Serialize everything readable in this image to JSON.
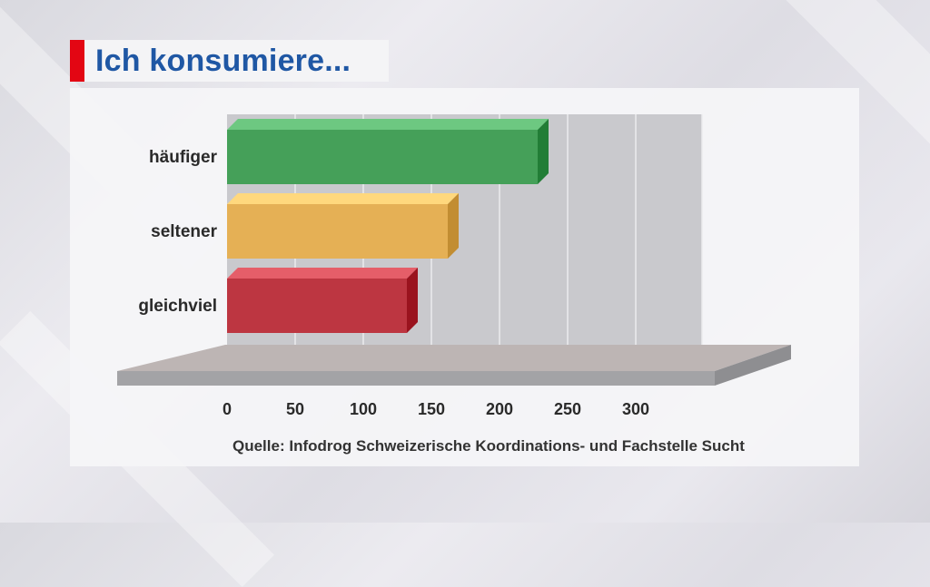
{
  "title": "Ich konsumiere...",
  "source": "Quelle: Infodrog Schweizerische Koordinations- und Fachstelle Sucht",
  "chart_data": {
    "type": "bar",
    "orientation": "horizontal",
    "title": "Ich konsumiere...",
    "categories": [
      "häufiger",
      "seltener",
      "gleichviel"
    ],
    "values": [
      228,
      162,
      132
    ],
    "colors": [
      "#45a059",
      "#e5b055",
      "#bd3641"
    ],
    "xlim": [
      0,
      350
    ],
    "x_ticks": [
      0,
      50,
      100,
      150,
      200,
      250,
      300
    ],
    "grid": true,
    "legend": "none"
  },
  "colors": {
    "title": "#1f57a4",
    "accent": "#e30613"
  }
}
